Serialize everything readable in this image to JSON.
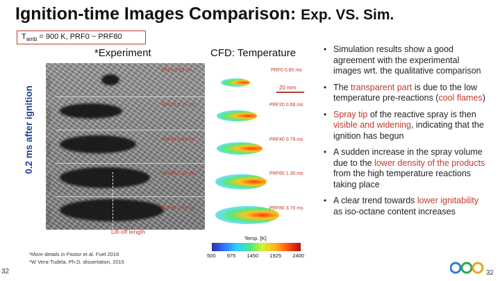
{
  "title": {
    "main": "Ignition-time Images Comparison: ",
    "sub": "Exp. VS. Sim."
  },
  "condition": {
    "t_label": "T",
    "t_sub": "amb",
    "rest": " = 900 K, PRF0 ~ PRF80"
  },
  "vertical_label": "0.2 ms after ignition",
  "experiment_header": "*Experiment",
  "cfd_header": "CFD: Temperature",
  "rows": [
    {
      "name": "PRF0",
      "exp_time": "PRF0 0.53 ms",
      "cfd_time": "PRF0 0.60 ms"
    },
    {
      "name": "PRF20",
      "exp_time": "PRF20 0.71 ms",
      "cfd_time": "PRF20 0.66 ms"
    },
    {
      "name": "PRF40",
      "exp_time": "PRF40 0.89 ms",
      "cfd_time": "PRF40 0.79 ms"
    },
    {
      "name": "PRF60",
      "exp_time": "PRF60 1.10 ms",
      "cfd_time": "PRF60 1.30 ms"
    },
    {
      "name": "PRF80",
      "exp_time": "PRF80 2.35 ms",
      "cfd_time": "PRF80 3.70 ms"
    }
  ],
  "scale_label": "20 mm",
  "liftoff_label": "Lift-off length",
  "colorbar": {
    "title": "Temp. [K]",
    "ticks": [
      "500",
      "975",
      "1450",
      "1925",
      "2400"
    ]
  },
  "footnotes": [
    "*More details in Pastor et al. Fuel 2016",
    "*W Vera-Tudela, Ph.D. dissertation, 2015"
  ],
  "page_number": "32",
  "bullets": [
    {
      "parts": [
        {
          "t": "Simulation results show a good agreement with the experimental images wrt. the qualitative comparison",
          "hl": false
        }
      ]
    },
    {
      "parts": [
        {
          "t": "The ",
          "hl": false
        },
        {
          "t": "transparent part",
          "hl": true
        },
        {
          "t": " is due to the low temperature pre-reactions (",
          "hl": false
        },
        {
          "t": "cool flames",
          "hl": true
        },
        {
          "t": ")",
          "hl": false
        }
      ]
    },
    {
      "parts": [
        {
          "t": "Spray tip",
          "hl": true
        },
        {
          "t": " of the reactive spray is then ",
          "hl": false
        },
        {
          "t": "visible and widening",
          "hl": true
        },
        {
          "t": ", indicating that the ignition has begun",
          "hl": false
        }
      ]
    },
    {
      "parts": [
        {
          "t": "A sudden increase in the spray volume due to the ",
          "hl": false
        },
        {
          "t": "lower density of the products",
          "hl": true
        },
        {
          "t": " from the high temperature reactions taking place",
          "hl": false
        }
      ]
    },
    {
      "parts": [
        {
          "t": "A clear trend towards ",
          "hl": false
        },
        {
          "t": "lower ignitability",
          "hl": true
        },
        {
          "t": " as iso-octane content increases",
          "hl": false
        }
      ]
    }
  ],
  "logo_number": "32",
  "colors": {
    "accent": "#c0392b",
    "vertical_label": "#1f3f8f"
  }
}
